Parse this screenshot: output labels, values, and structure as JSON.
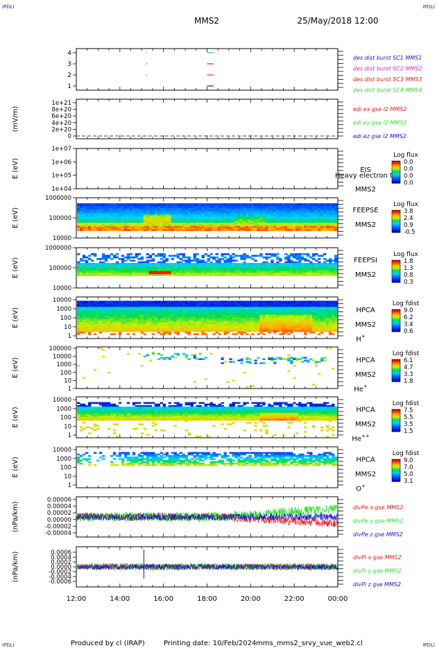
{
  "header": {
    "corner_label": "IPDLI",
    "spacecraft": "MMS2",
    "datetime": "25/May/2018 12:00"
  },
  "footer": {
    "produced_by": "Produced by cl (IRAP)",
    "printing_date": "Printing date: 10/Feb/2024",
    "script_name": "mms_mms2_srvy_vue_web2.cl"
  },
  "x_axis": {
    "ticks": [
      "12:00",
      "14:00",
      "16:00",
      "18:00",
      "20:00",
      "22:00",
      "00:00"
    ]
  },
  "colors": {
    "red": "#ee1111",
    "green": "#22dd22",
    "blue": "#1111cc",
    "magenta": "#cc22cc"
  },
  "chart_data": [
    {
      "type": "scatter",
      "panel": "burst",
      "yticks": [
        "4",
        "3",
        "2",
        "1"
      ],
      "legend": [
        {
          "label": "des dist burst SC1 MMS1",
          "color": "#1111cc"
        },
        {
          "label": "des dist burst SC2 MMS2",
          "color": "#cc22cc"
        },
        {
          "label": "des dist burst SC3 MMS3",
          "color": "#ee1111"
        },
        {
          "label": "des dist burst SC4 MMS4",
          "color": "#22dd22"
        }
      ],
      "segments": [
        {
          "sc": 4,
          "t": [
            15.2,
            15.25
          ]
        },
        {
          "sc": 4,
          "t": [
            18.0,
            18.3
          ]
        },
        {
          "sc": 3,
          "t": [
            15.2,
            15.25
          ]
        },
        {
          "sc": 3,
          "t": [
            18.0,
            18.3
          ]
        },
        {
          "sc": 2,
          "t": [
            15.2,
            15.25
          ]
        },
        {
          "sc": 2,
          "t": [
            18.0,
            18.3
          ]
        },
        {
          "sc": 1,
          "t": [
            18.0,
            18.3
          ]
        }
      ]
    },
    {
      "type": "line",
      "panel": "edi",
      "ylabel": "(mV/m)",
      "yticks": [
        "1e+21",
        "8e+20",
        "6e+20",
        "4e+20",
        "2e+20",
        "0"
      ],
      "legend": [
        {
          "label": "edi ex gse l2 MMS2",
          "color": "#ee1111"
        },
        {
          "label": "edi ey gse l2 MMS2",
          "color": "#22dd22"
        },
        {
          "label": "edi ez gse l2 MMS2",
          "color": "#1111cc"
        }
      ]
    },
    {
      "type": "heatmap",
      "panel": "eis",
      "ylabel": "E (eV)",
      "yticks": [
        "1e+07",
        "1e+06",
        "1e+05",
        "1e+04"
      ],
      "label_lines": [
        "EIS",
        "MMS2"
      ],
      "overlay_text": "Heavy electron to",
      "colorbar": {
        "title": "Log flux",
        "ticks": [
          "0.0",
          "0.0",
          "0.0",
          "0.0"
        ]
      }
    },
    {
      "type": "heatmap",
      "panel": "feepse",
      "ylabel": "E (eV)",
      "yticks": [
        "1000000",
        "100000",
        "10000"
      ],
      "label_lines": [
        "FEEPSE",
        "MMS2"
      ],
      "colorbar": {
        "title": "Log flux",
        "ticks": [
          "3.8",
          "2.4",
          "0.9",
          "-0.5"
        ]
      }
    },
    {
      "type": "heatmap",
      "panel": "feepsi",
      "ylabel": "E (eV)",
      "yticks": [
        "1000000",
        "100000",
        "10000"
      ],
      "label_lines": [
        "FEEPSI",
        "MMS2"
      ],
      "colorbar": {
        "title": "Log flux",
        "ticks": [
          "1.8",
          "1.3",
          "0.8",
          "0.3"
        ]
      }
    },
    {
      "type": "heatmap",
      "panel": "hpca_h",
      "ylabel": "E (eV)",
      "yticks": [
        "10000",
        "1000",
        "100",
        "10",
        "1"
      ],
      "label_lines": [
        "HPCA",
        "MMS2"
      ],
      "species": "H",
      "species_sup": "+",
      "colorbar": {
        "title": "Log fdist",
        "ticks": [
          "9.0",
          "6.2",
          "3.4",
          "0.6"
        ]
      }
    },
    {
      "type": "heatmap",
      "panel": "hpca_he",
      "ylabel": "E (eV)",
      "yticks": [
        "100000",
        "10000",
        "1000",
        "100",
        "10",
        "1"
      ],
      "label_lines": [
        "HPCA",
        "MMS2"
      ],
      "species": "He",
      "species_sup": "+",
      "colorbar": {
        "title": "Log fdist",
        "ticks": [
          "6.1",
          "4.7",
          "3.3",
          "1.8"
        ]
      }
    },
    {
      "type": "heatmap",
      "panel": "hpca_hepp",
      "ylabel": "E (eV)",
      "yticks": [
        "10000",
        "1000",
        "100",
        "10",
        "1"
      ],
      "label_lines": [
        "HPCA",
        "MMS2"
      ],
      "species": "He",
      "species_sup": "++",
      "colorbar": {
        "title": "Log fdist",
        "ticks": [
          "7.5",
          "5.5",
          "3.5",
          "1.5"
        ]
      }
    },
    {
      "type": "heatmap",
      "panel": "hpca_o",
      "ylabel": "E (eV)",
      "yticks": [
        "10000",
        "1000",
        "100",
        "10",
        "1"
      ],
      "label_lines": [
        "HPCA",
        "MMS2"
      ],
      "species": "O",
      "species_sup": "+",
      "colorbar": {
        "title": "Log fdist",
        "ticks": [
          "9.0",
          "7.0",
          "5.0",
          "3.1"
        ]
      }
    },
    {
      "type": "line",
      "panel": "divpe",
      "ylabel": "(nPa/km)",
      "yticks": [
        "0.00006",
        "0.00004",
        "0.00002",
        "0.00000",
        "-0.00002",
        "-0.00004"
      ],
      "legend": [
        {
          "label": "divPe x gse MMS2",
          "color": "#ee1111"
        },
        {
          "label": "divPe y gse MMS2",
          "color": "#22dd22"
        },
        {
          "label": "divPe z gse MMS2",
          "color": "#1111cc"
        }
      ]
    },
    {
      "type": "line",
      "panel": "divpi",
      "ylabel": "(nPa/km)",
      "yticks": [
        "0.0006",
        "0.0004",
        "0.0002",
        "0.0000",
        "-0.0002",
        "-0.0004",
        "-0.0006"
      ],
      "legend": [
        {
          "label": "divPi x gse MMS2",
          "color": "#ee1111"
        },
        {
          "label": "divPi y gse MMS2",
          "color": "#22dd22"
        },
        {
          "label": "divPi z gse MMS2",
          "color": "#1111cc"
        }
      ]
    }
  ]
}
